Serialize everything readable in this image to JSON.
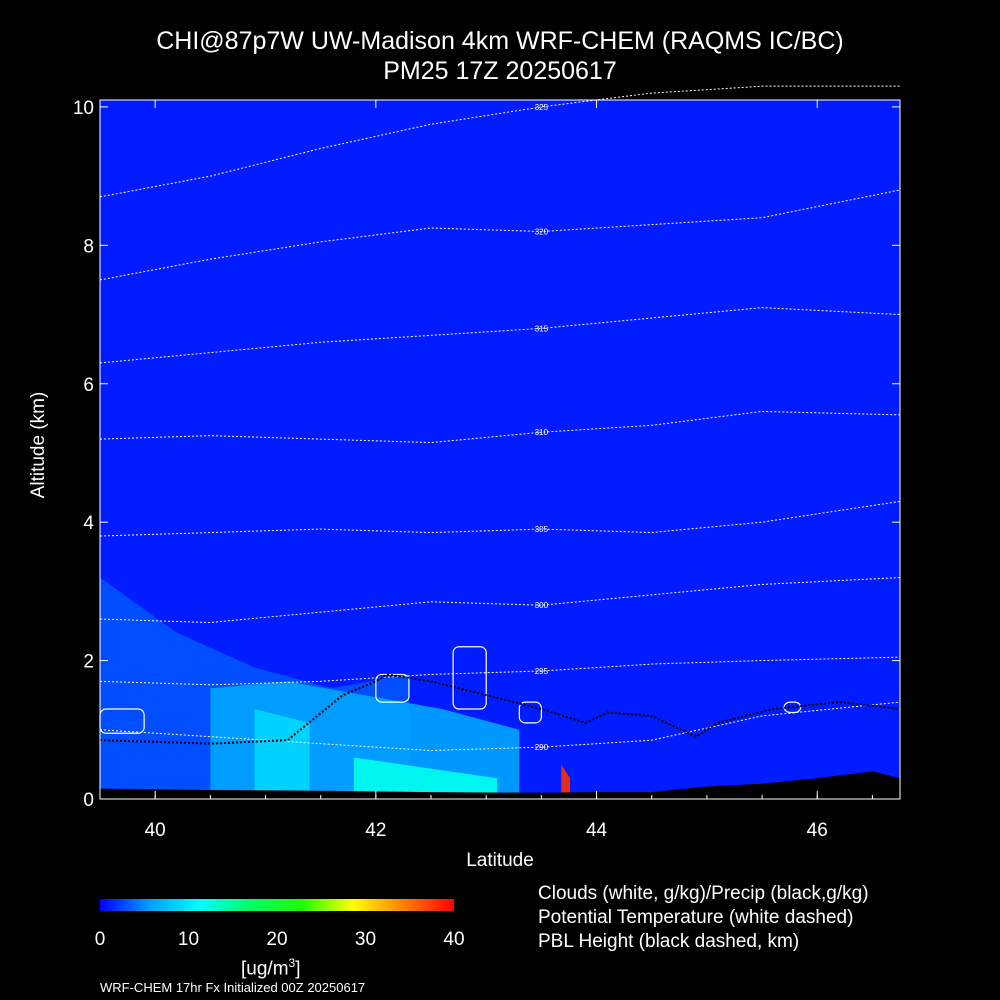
{
  "title_line1": "CHI@87p7W UW-Madison 4km WRF-CHEM (RAQMS IC/BC)",
  "title_line2": "PM25 17Z 20250617",
  "legend": {
    "clouds": "Clouds (white, g/kg)/Precip (black,g/kg)",
    "theta": "Potential Temperature (white dashed)",
    "pbl": "PBL Height (black dashed, km)"
  },
  "colorbar": {
    "unit_label": "[ug/m",
    "unit_sup": "3",
    "unit_close": "]",
    "ticks": [
      "0",
      "10",
      "20",
      "30",
      "40"
    ],
    "tick_values": [
      0,
      10,
      20,
      30,
      40
    ],
    "range": [
      0,
      40
    ],
    "colors": [
      "#0000ff",
      "#00a0ff",
      "#00ffff",
      "#00ff60",
      "#20ff00",
      "#ffff00",
      "#ff8000",
      "#ff0000"
    ]
  },
  "footer": "WRF-CHEM 17hr  Fx Initialized 00Z 20250617",
  "chart_data": {
    "type": "heatmap",
    "title": "CHI@87p7W UW-Madison 4km WRF-CHEM (RAQMS IC/BC) PM25 17Z 20250617",
    "xlabel": "Latitude",
    "ylabel": "Altitude (km)",
    "xlim": [
      39.5,
      46.75
    ],
    "ylim": [
      0,
      10.1
    ],
    "xticks": [
      "40",
      "42",
      "44",
      "46"
    ],
    "xtick_values": [
      40,
      42,
      44,
      46
    ],
    "yticks": [
      "0",
      "2",
      "4",
      "6",
      "8",
      "10"
    ],
    "ytick_values": [
      0,
      2,
      4,
      6,
      8,
      10
    ],
    "variable": "PM2.5",
    "units": "ug/m3",
    "background_pm25": 1,
    "pm25_regions": [
      {
        "lat": [
          39.5,
          42.3
        ],
        "alt_top": [
          3.2,
          2.4,
          1.9,
          1.6,
          1.8
        ],
        "value": 3
      },
      {
        "lat": [
          40.5,
          43.3
        ],
        "alt_top": [
          1.6,
          1.7,
          1.5,
          1.3,
          1.0
        ],
        "value": 6
      },
      {
        "lat": [
          40.9,
          41.4
        ],
        "alt_top": [
          1.3,
          1.1
        ],
        "value": 9
      },
      {
        "lat": [
          41.8,
          43.1
        ],
        "alt_top": [
          0.6,
          0.3
        ],
        "value": 12
      },
      {
        "lat": [
          43.68,
          43.76
        ],
        "alt_top": [
          0.5,
          0.3
        ],
        "value": 38
      }
    ],
    "max_pm25": {
      "lat": 43.72,
      "alt": 0.35,
      "value": 38
    },
    "theta_contours": [
      {
        "label": "290",
        "lat": [
          39.5,
          40.5,
          41.5,
          42.5,
          43.5,
          44.5,
          45.5,
          46.75
        ],
        "alt": [
          1.0,
          0.9,
          0.8,
          0.7,
          0.75,
          0.85,
          1.2,
          1.4
        ]
      },
      {
        "label": "295",
        "lat": [
          39.5,
          40.5,
          41.5,
          42.5,
          43.5,
          44.5,
          45.5,
          46.75
        ],
        "alt": [
          1.7,
          1.65,
          1.7,
          1.8,
          1.85,
          1.95,
          2.0,
          2.05
        ]
      },
      {
        "label": "300",
        "lat": [
          39.5,
          40.5,
          41.5,
          42.5,
          43.5,
          44.5,
          45.5,
          46.75
        ],
        "alt": [
          2.6,
          2.55,
          2.7,
          2.85,
          2.8,
          2.95,
          3.1,
          3.2
        ]
      },
      {
        "label": "305",
        "lat": [
          39.5,
          40.5,
          41.5,
          42.5,
          43.5,
          44.5,
          45.5,
          46.75
        ],
        "alt": [
          3.8,
          3.85,
          3.9,
          3.85,
          3.9,
          3.85,
          4.0,
          4.3
        ]
      },
      {
        "label": "310",
        "lat": [
          39.5,
          40.5,
          41.5,
          42.5,
          43.5,
          44.5,
          45.5,
          46.75
        ],
        "alt": [
          5.2,
          5.25,
          5.2,
          5.15,
          5.3,
          5.4,
          5.6,
          5.55
        ]
      },
      {
        "label": "315",
        "lat": [
          39.5,
          40.5,
          41.5,
          42.5,
          43.5,
          44.5,
          45.5,
          46.75
        ],
        "alt": [
          6.3,
          6.45,
          6.6,
          6.7,
          6.8,
          6.95,
          7.1,
          7.0
        ]
      },
      {
        "label": "320",
        "lat": [
          39.5,
          40.5,
          41.5,
          42.5,
          43.5,
          44.5,
          45.5,
          46.75
        ],
        "alt": [
          7.5,
          7.8,
          8.05,
          8.25,
          8.2,
          8.3,
          8.4,
          8.8
        ]
      },
      {
        "label": "325",
        "lat": [
          39.5,
          40.5,
          41.5,
          42.5,
          43.5,
          44.5,
          45.5,
          46.75
        ],
        "alt": [
          8.7,
          9.0,
          9.4,
          9.75,
          10.0,
          10.2,
          10.3,
          10.3
        ]
      }
    ],
    "pbl_height": {
      "lat": [
        39.5,
        40.5,
        41.2,
        41.7,
        42.0,
        42.1,
        42.5,
        43.5,
        43.9,
        44.1,
        44.5,
        44.9,
        45.1,
        45.6,
        46.2,
        46.75
      ],
      "alt": [
        0.85,
        0.8,
        0.85,
        1.5,
        1.7,
        1.8,
        1.7,
        1.3,
        1.1,
        1.25,
        1.2,
        0.9,
        1.1,
        1.3,
        1.4,
        1.3
      ]
    },
    "clouds": [
      {
        "lat": [
          42.0,
          42.3
        ],
        "alt": [
          1.4,
          1.8
        ]
      },
      {
        "lat": [
          42.7,
          43.0
        ],
        "alt": [
          1.3,
          2.2
        ]
      },
      {
        "lat": [
          43.3,
          43.5
        ],
        "alt": [
          1.1,
          1.4
        ]
      },
      {
        "lat": [
          45.7,
          45.85
        ],
        "alt": [
          1.25,
          1.4
        ]
      },
      {
        "lat": [
          39.5,
          39.9
        ],
        "alt": [
          0.95,
          1.3
        ]
      }
    ],
    "terrain": {
      "lat": [
        39.5,
        40.5,
        41.5,
        42.5,
        43.5,
        44.0,
        44.5,
        45.0,
        45.5,
        46.0,
        46.5,
        46.75
      ],
      "alt": [
        0.15,
        0.13,
        0.12,
        0.1,
        0.09,
        0.1,
        0.1,
        0.18,
        0.22,
        0.3,
        0.4,
        0.3
      ]
    }
  }
}
